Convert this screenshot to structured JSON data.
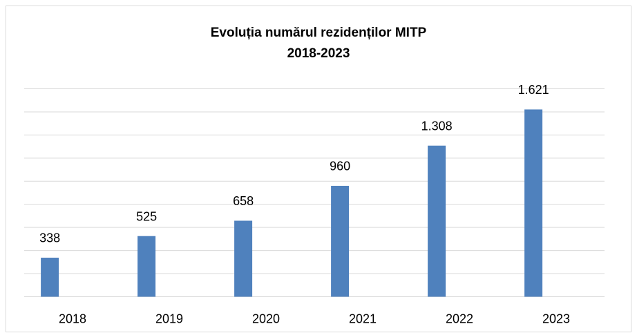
{
  "chart_data": {
    "type": "bar",
    "title": "Evoluția numărul rezidenților MITP",
    "subtitle": "2018-2023",
    "categories": [
      "2018",
      "2019",
      "2020",
      "2021",
      "2022",
      "2023"
    ],
    "values": [
      338,
      525,
      658,
      960,
      1308,
      1621
    ],
    "value_labels": [
      "338",
      "525",
      "658",
      "960",
      "1.308",
      "1.621"
    ],
    "color": "#4f81bd",
    "ylim": [
      0,
      1800
    ],
    "yticks": [
      0,
      200,
      400,
      600,
      800,
      1000,
      1200,
      1400,
      1600,
      1800
    ],
    "grid": true
  }
}
